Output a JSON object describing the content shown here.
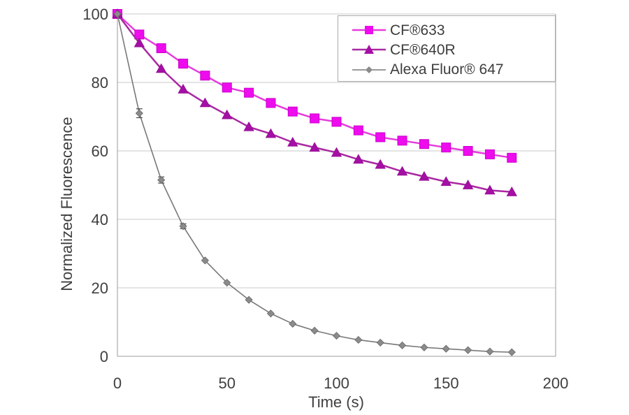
{
  "figure": {
    "x_axis_title": "Time (s)",
    "y_axis_title": "Normalized Fluorescence"
  },
  "chart_data": {
    "type": "line",
    "title": "",
    "xlabel": "Time (s)",
    "ylabel": "Normalized Fluorescence",
    "xlim": [
      0,
      200
    ],
    "ylim": [
      0,
      100
    ],
    "x_ticks": [
      0,
      50,
      100,
      150,
      200
    ],
    "y_ticks": [
      0,
      20,
      40,
      60,
      80,
      100
    ],
    "grid": "horizontal-only",
    "legend_position": "top-right-boxed",
    "x": [
      0,
      10,
      20,
      30,
      40,
      50,
      60,
      70,
      80,
      90,
      100,
      110,
      120,
      130,
      140,
      150,
      160,
      170,
      180
    ],
    "series": [
      {
        "name": "CF®633",
        "marker": "square",
        "color": "#EE0BEE",
        "marker_stroke": "#CC00CC",
        "line_color": "#E63BDE",
        "line_width": 2.5,
        "values": [
          100,
          94,
          90,
          85.5,
          82,
          78.5,
          77,
          74,
          71.5,
          69.5,
          68.5,
          66,
          64,
          63,
          62,
          61,
          60,
          59,
          58
        ]
      },
      {
        "name": "CF®640R",
        "marker": "triangle",
        "color": "#A50FA5",
        "marker_stroke": "#930D93",
        "line_color": "#AA28A2",
        "line_width": 2.5,
        "values": [
          100,
          91.5,
          84,
          78,
          74,
          70.5,
          67,
          65,
          62.5,
          61,
          59.5,
          57.5,
          56,
          54,
          52.5,
          51,
          50,
          48.5,
          48
        ]
      },
      {
        "name": "Alexa Fluor® 647",
        "marker": "diamond",
        "color": "#8B8B8B",
        "marker_stroke": "#666666",
        "line_color": "#787878",
        "line_width": 1.6,
        "values": [
          100,
          71,
          51.5,
          38,
          28,
          21.5,
          16.5,
          12.5,
          9.5,
          7.5,
          6,
          4.8,
          4,
          3.2,
          2.6,
          2.2,
          1.8,
          1.4,
          1.2
        ],
        "error_bars": [
          {
            "x": 10,
            "err": 1.3
          },
          {
            "x": 20,
            "err": 0.9
          },
          {
            "x": 30,
            "err": 0.7
          }
        ]
      }
    ]
  },
  "style": {
    "gridline_color": "#c9c9c9",
    "axis_color": "#9b9b9b",
    "tick_text_color": "#3f3f3f",
    "error_bar_color": "#4a4a4a",
    "background": "#ffffff"
  }
}
